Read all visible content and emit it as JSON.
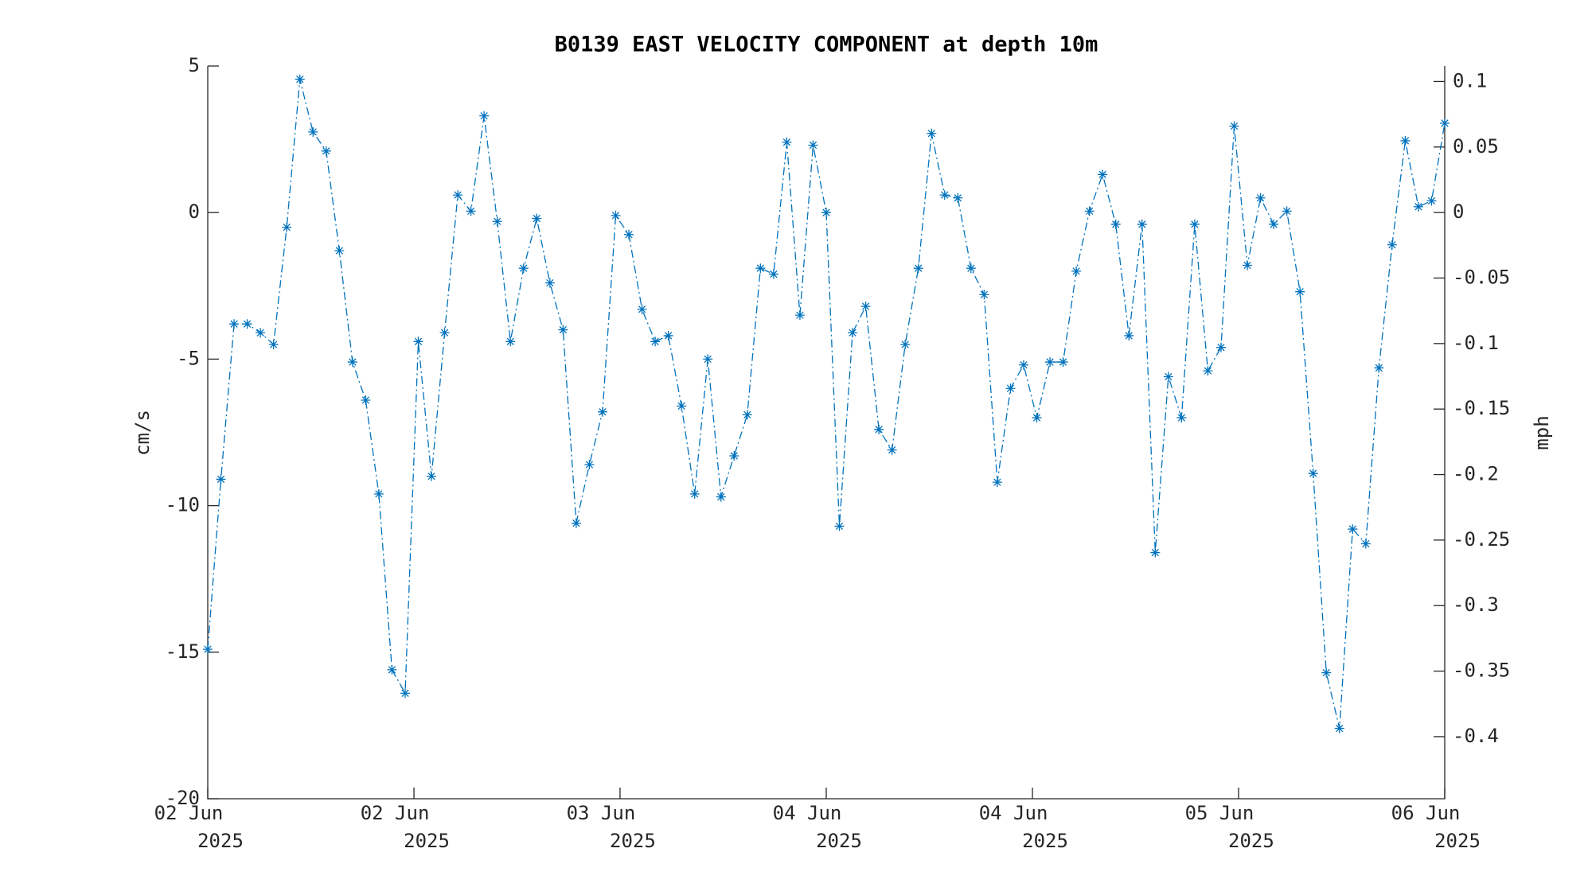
{
  "chart_data": {
    "type": "line",
    "title": "B0139 EAST VELOCITY COMPONENT at depth 10m",
    "ylabel": "cm/s",
    "y2label": "mph",
    "color": "#0072bd",
    "line_style": "dash-dot",
    "marker": "asterisk",
    "x": [
      0,
      1,
      2,
      3,
      4,
      5,
      6,
      7,
      8,
      9,
      10,
      11,
      12,
      13,
      14,
      15,
      16,
      17,
      18,
      19,
      20,
      21,
      22,
      23,
      24,
      25,
      26,
      27,
      28,
      29,
      30,
      31,
      32,
      33,
      34,
      35,
      36,
      37,
      38,
      39,
      40,
      41,
      42,
      43,
      44,
      45,
      46,
      47,
      48,
      49,
      50,
      51,
      52,
      53,
      54,
      55,
      56,
      57,
      58,
      59,
      60,
      61,
      62,
      63,
      64,
      65,
      66,
      67,
      68,
      69,
      70,
      71,
      72,
      73,
      74,
      75,
      76,
      77,
      78,
      79,
      80,
      81,
      82,
      83,
      84,
      85,
      86,
      87,
      88,
      89,
      90,
      91,
      92,
      93,
      94
    ],
    "values": [
      -14.9,
      -9.1,
      -3.8,
      -3.8,
      -4.1,
      -4.5,
      -0.5,
      4.55,
      2.75,
      2.1,
      -1.3,
      -5.1,
      -6.4,
      -9.6,
      -15.6,
      -16.4,
      -4.4,
      -9.0,
      -4.1,
      0.6,
      0.05,
      3.3,
      -0.3,
      -4.4,
      -1.9,
      -0.2,
      -2.4,
      -4.0,
      -10.6,
      -8.6,
      -6.8,
      -0.1,
      -0.75,
      -3.3,
      -4.4,
      -4.2,
      -6.6,
      -9.6,
      -5.0,
      -9.7,
      -8.3,
      -6.9,
      -1.9,
      -2.1,
      2.4,
      -3.5,
      2.3,
      0,
      -10.7,
      -4.1,
      -3.2,
      -7.4,
      -8.1,
      -4.5,
      -1.9,
      2.7,
      0.6,
      0.5,
      -1.9,
      -2.8,
      -9.2,
      -6.0,
      -5.2,
      -7.0,
      -5.1,
      -5.1,
      -2.0,
      0.05,
      1.3,
      -0.4,
      -4.2,
      -0.4,
      -11.6,
      -5.6,
      -7.0,
      -0.4,
      -5.4,
      -4.6,
      2.95,
      -1.8,
      0.5,
      -0.4,
      0.05,
      -2.7,
      -8.9,
      -15.7,
      -17.6,
      -10.8,
      -11.3,
      -5.3,
      -1.1,
      2.45,
      0.2,
      0.4,
      3.05
    ],
    "xlim": [
      0,
      94
    ],
    "xticks": [
      {
        "value": 0,
        "label": "02 Jun 2025"
      },
      {
        "value": 15.67,
        "label": "02 Jun 2025"
      },
      {
        "value": 31.33,
        "label": "03 Jun 2025"
      },
      {
        "value": 47,
        "label": "04 Jun 2025"
      },
      {
        "value": 62.67,
        "label": "04 Jun 2025"
      },
      {
        "value": 78.33,
        "label": "05 Jun 2025"
      },
      {
        "value": 94,
        "label": "06 Jun 2025"
      }
    ],
    "ylim": [
      -20,
      5
    ],
    "yticks": [
      -20,
      -15,
      -10,
      -5,
      0,
      5
    ],
    "y2lim": [
      -0.4474,
      0.1118
    ],
    "y2ticks": [
      -0.4,
      -0.35,
      -0.3,
      -0.25,
      -0.2,
      -0.15,
      -0.1,
      -0.05,
      0,
      0.05,
      0.1
    ],
    "grid": false
  }
}
